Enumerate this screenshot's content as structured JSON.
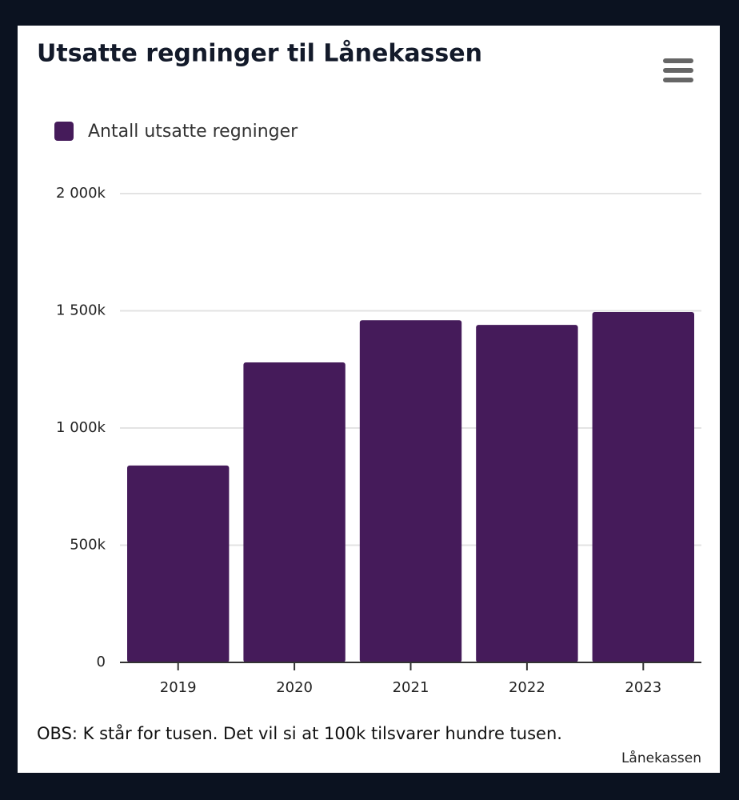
{
  "chart_data": {
    "type": "bar",
    "title": "Utsatte regninger til Lånekassen",
    "categories": [
      "2019",
      "2020",
      "2021",
      "2022",
      "2023"
    ],
    "series": [
      {
        "name": "Antall utsatte regninger",
        "color": "#451b5a",
        "values": [
          840000,
          1280000,
          1460000,
          1440000,
          1495000
        ]
      }
    ],
    "ylim": [
      0,
      2000000
    ],
    "yticks": [
      0,
      {
        "value": 500000,
        "label": "500k"
      },
      {
        "value": 1000000,
        "label": "1 000k"
      },
      {
        "value": 1500000,
        "label": "1 500k"
      },
      {
        "value": 2000000,
        "label": "2 000k"
      }
    ],
    "grid": true,
    "legend": "top-left",
    "caption": "OBS: K står for tusen.  Det vil si at 100k tilsvarer hundre tusen.",
    "credit": "Lånekassen"
  }
}
